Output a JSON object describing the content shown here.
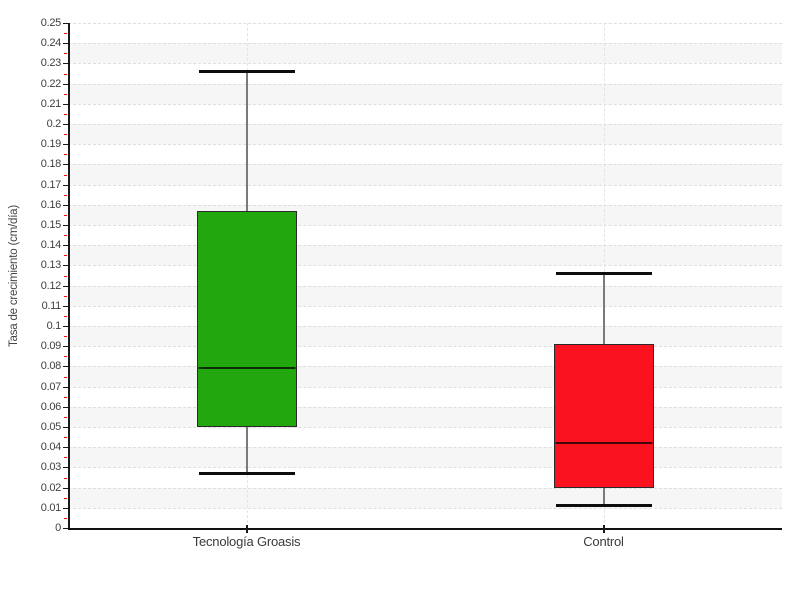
{
  "chart_data": {
    "type": "boxplot",
    "title": "",
    "xlabel": "",
    "ylabel": "Tasa de crecimiento (cm/día)",
    "ylim": [
      0,
      0.25
    ],
    "ytick_step": 0.01,
    "ytick_labels": [
      "0",
      "0.01",
      "0.02",
      "0.03",
      "0.04",
      "0.05",
      "0.06",
      "0.07",
      "0.08",
      "0.09",
      "0.1",
      "0.11",
      "0.12",
      "0.13",
      "0.14",
      "0.15",
      "0.16",
      "0.17",
      "0.18",
      "0.19",
      "0.2",
      "0.21",
      "0.22",
      "0.23",
      "0.24",
      "0.25"
    ],
    "yminor_tick_step": 0.005,
    "grid": {
      "horizontal_dashed": true,
      "vertical_dashed_at_categories": true,
      "alternating_bands": true,
      "band_color": "#f6f6f6",
      "gridline_color": "#dedede",
      "minor_tick_color": "#ff0000"
    },
    "legend": "none",
    "categories": [
      "Tecnología Groasis",
      "Control"
    ],
    "series": [
      {
        "name": "Tecnología Groasis",
        "color": "#22a80e",
        "min": 0.027,
        "q1": 0.05,
        "median": 0.079,
        "q3": 0.157,
        "max": 0.226
      },
      {
        "name": "Control",
        "color": "#fb121f",
        "min": 0.011,
        "q1": 0.02,
        "median": 0.042,
        "q3": 0.091,
        "max": 0.126
      }
    ]
  }
}
